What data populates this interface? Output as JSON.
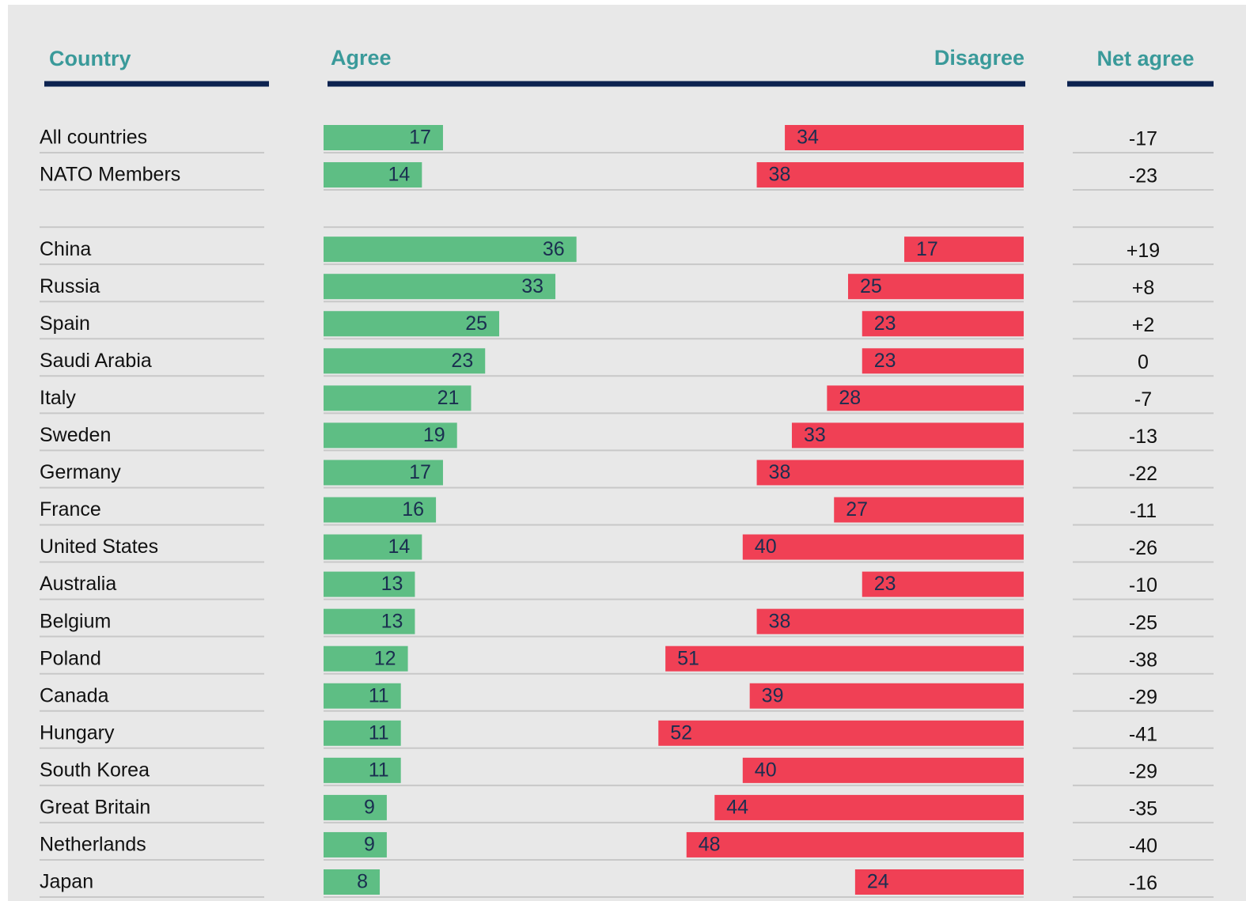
{
  "chart_data": {
    "type": "diverging-bar",
    "country_header": "Country",
    "categories": [
      "All countries",
      "NATO Members",
      null,
      "China",
      "Russia",
      "Spain",
      "Saudi Arabia",
      "Italy",
      "Sweden",
      "Germany",
      "France",
      "United States",
      "Australia",
      "Belgium",
      "Poland",
      "Canada",
      "Hungary",
      "South Korea",
      "Great Britain",
      "Netherlands",
      "Japan"
    ],
    "series": [
      {
        "name": "Agree",
        "color": "#5ebe84",
        "values": [
          17,
          14,
          null,
          36,
          33,
          25,
          23,
          21,
          19,
          17,
          16,
          14,
          13,
          13,
          12,
          11,
          11,
          11,
          9,
          9,
          8
        ]
      },
      {
        "name": "Disagree",
        "color": "#f04055",
        "values": [
          34,
          38,
          null,
          17,
          25,
          23,
          23,
          28,
          33,
          38,
          27,
          40,
          23,
          38,
          51,
          39,
          52,
          40,
          44,
          48,
          24
        ]
      }
    ],
    "net": {
      "name": "Net agree",
      "values": [
        -17,
        -23,
        null,
        19,
        8,
        2,
        0,
        -7,
        -13,
        -22,
        -11,
        -26,
        -10,
        -25,
        -38,
        -29,
        -41,
        -29,
        -35,
        -40,
        -16
      ],
      "value_labels": [
        "-17",
        "-23",
        null,
        "+19",
        "+8",
        "+2",
        "0",
        "-7",
        "-13",
        "-22",
        "-11",
        "-26",
        "-10",
        "-25",
        "-38",
        "-29",
        "-41",
        "-29",
        "-35",
        "-40",
        "-16"
      ]
    }
  }
}
